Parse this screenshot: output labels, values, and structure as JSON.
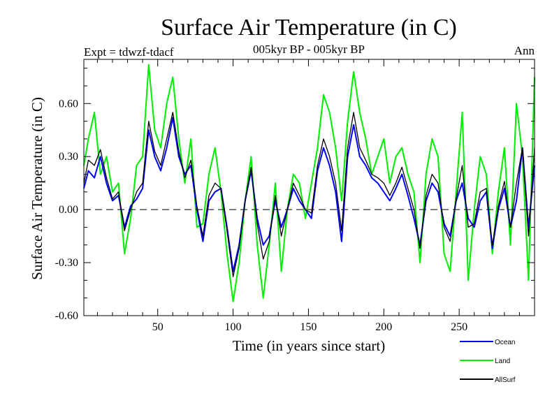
{
  "chart_data": {
    "type": "line",
    "title": "Surface Air Temperature (in C)",
    "subtitle": "005kyr BP - 005kyr BP",
    "left_label": "Expt = tdwzf-tdacf",
    "right_label": "Ann",
    "xlabel": "Time (in years since start)",
    "ylabel": "Surface Air Temperature (in C)",
    "xlim": [
      1,
      300
    ],
    "ylim": [
      -0.6,
      0.85
    ],
    "x_ticks": [
      50,
      100,
      150,
      200,
      250
    ],
    "y_ticks": [
      -0.6,
      -0.3,
      0.0,
      0.3,
      0.6
    ],
    "y_tick_labels": [
      "-0.60",
      "-0.30",
      "0.00",
      "0.30",
      "0.60"
    ],
    "zero_line": "dashed",
    "legend_position": "below-right",
    "series": [
      {
        "name": "Ocean",
        "color": "#0000ff",
        "x": [
          1,
          4,
          8,
          12,
          16,
          20,
          24,
          28,
          32,
          36,
          40,
          44,
          48,
          52,
          56,
          60,
          64,
          68,
          72,
          76,
          80,
          84,
          88,
          92,
          96,
          100,
          104,
          108,
          112,
          116,
          120,
          124,
          128,
          132,
          136,
          140,
          144,
          148,
          152,
          156,
          160,
          164,
          168,
          172,
          176,
          180,
          184,
          188,
          192,
          196,
          200,
          204,
          208,
          212,
          216,
          220,
          224,
          228,
          232,
          236,
          240,
          244,
          248,
          252,
          256,
          260,
          264,
          268,
          272,
          276,
          280,
          284,
          288,
          292,
          296,
          300
        ],
        "y": [
          0.12,
          0.22,
          0.18,
          0.3,
          0.15,
          0.05,
          0.08,
          -0.1,
          0.02,
          0.06,
          0.12,
          0.45,
          0.3,
          0.22,
          0.35,
          0.52,
          0.3,
          0.2,
          0.25,
          0.0,
          -0.18,
          0.05,
          0.1,
          0.12,
          -0.1,
          -0.35,
          -0.2,
          0.05,
          0.22,
          -0.05,
          -0.2,
          -0.15,
          0.05,
          -0.1,
          0.0,
          0.12,
          0.05,
          0.0,
          -0.05,
          0.22,
          0.35,
          0.25,
          0.1,
          -0.18,
          0.3,
          0.48,
          0.3,
          0.25,
          0.18,
          0.15,
          0.1,
          0.05,
          0.12,
          0.2,
          0.08,
          -0.05,
          -0.2,
          0.05,
          0.15,
          0.1,
          -0.08,
          -0.15,
          0.05,
          0.15,
          -0.05,
          -0.1,
          0.05,
          0.1,
          -0.22,
          0.0,
          0.12,
          -0.1,
          0.05,
          0.35,
          -0.1,
          0.25
        ]
      },
      {
        "name": "Land",
        "color": "#00ee00",
        "x": [
          1,
          4,
          8,
          12,
          16,
          20,
          24,
          28,
          32,
          36,
          40,
          44,
          48,
          52,
          56,
          60,
          64,
          68,
          72,
          76,
          80,
          84,
          88,
          92,
          96,
          100,
          104,
          108,
          112,
          116,
          120,
          124,
          128,
          132,
          136,
          140,
          144,
          148,
          152,
          156,
          160,
          164,
          168,
          172,
          176,
          180,
          184,
          188,
          192,
          196,
          200,
          204,
          208,
          212,
          216,
          220,
          224,
          228,
          232,
          236,
          240,
          244,
          248,
          252,
          256,
          260,
          264,
          268,
          272,
          276,
          280,
          284,
          288,
          292,
          296,
          300
        ],
        "y": [
          0.25,
          0.4,
          0.55,
          0.2,
          0.3,
          0.1,
          0.15,
          -0.25,
          -0.05,
          0.25,
          0.3,
          0.82,
          0.45,
          0.35,
          0.6,
          0.75,
          0.4,
          0.15,
          0.4,
          -0.1,
          -0.08,
          0.2,
          0.35,
          0.1,
          -0.25,
          -0.52,
          -0.3,
          0.05,
          0.3,
          -0.2,
          -0.5,
          -0.2,
          0.15,
          -0.35,
          0.0,
          0.2,
          0.15,
          -0.05,
          0.15,
          0.35,
          0.65,
          0.55,
          0.35,
          0.05,
          0.5,
          0.78,
          0.55,
          0.4,
          0.2,
          0.3,
          0.4,
          0.15,
          0.3,
          0.35,
          0.2,
          0.1,
          -0.3,
          0.2,
          0.4,
          0.3,
          -0.25,
          -0.35,
          0.1,
          0.55,
          -0.4,
          0.0,
          0.3,
          0.2,
          -0.25,
          0.1,
          0.35,
          -0.2,
          0.6,
          0.3,
          -0.4,
          0.75
        ]
      },
      {
        "name": "AllSurf",
        "color": "#000000",
        "x": [
          1,
          4,
          8,
          12,
          16,
          20,
          24,
          28,
          32,
          36,
          40,
          44,
          48,
          52,
          56,
          60,
          64,
          68,
          72,
          76,
          80,
          84,
          88,
          92,
          96,
          100,
          104,
          108,
          112,
          116,
          120,
          124,
          128,
          132,
          136,
          140,
          144,
          148,
          152,
          156,
          160,
          164,
          168,
          172,
          176,
          180,
          184,
          188,
          192,
          196,
          200,
          204,
          208,
          212,
          216,
          220,
          224,
          228,
          232,
          236,
          240,
          244,
          248,
          252,
          256,
          260,
          264,
          268,
          272,
          276,
          280,
          284,
          288,
          292,
          296,
          300
        ],
        "y": [
          0.15,
          0.28,
          0.25,
          0.34,
          0.18,
          0.06,
          0.1,
          -0.12,
          0.0,
          0.1,
          0.15,
          0.5,
          0.33,
          0.25,
          0.4,
          0.55,
          0.33,
          0.18,
          0.28,
          0.02,
          -0.15,
          0.08,
          0.15,
          0.12,
          -0.12,
          -0.38,
          -0.22,
          0.05,
          0.24,
          -0.08,
          -0.28,
          -0.18,
          0.08,
          -0.15,
          0.0,
          0.15,
          0.08,
          0.0,
          -0.02,
          0.25,
          0.4,
          0.3,
          0.15,
          -0.12,
          0.35,
          0.55,
          0.35,
          0.28,
          0.2,
          0.18,
          0.15,
          0.08,
          0.15,
          0.24,
          0.12,
          0.0,
          -0.22,
          0.08,
          0.2,
          0.15,
          -0.1,
          -0.18,
          0.06,
          0.25,
          -0.1,
          -0.08,
          0.1,
          0.12,
          -0.2,
          0.02,
          0.16,
          -0.1,
          0.15,
          0.35,
          -0.15,
          0.35
        ]
      }
    ]
  }
}
